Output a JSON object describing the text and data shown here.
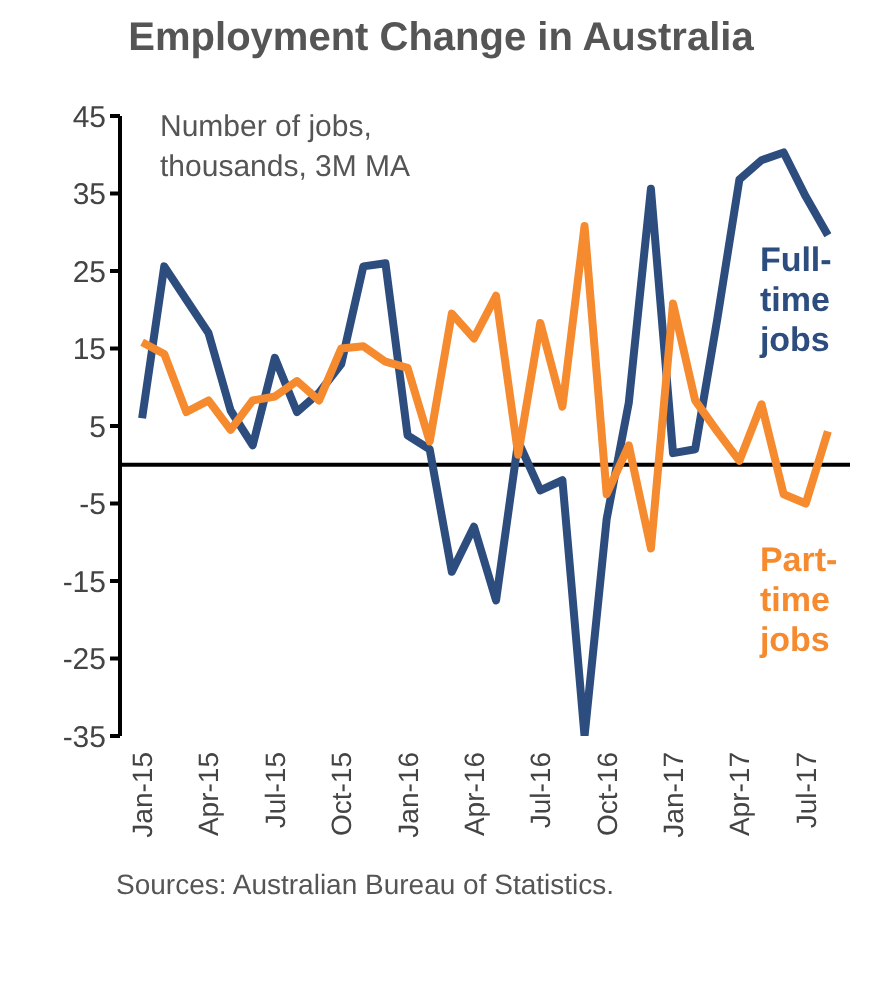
{
  "chart_data": {
    "type": "line",
    "title": "Employment Change in Australia",
    "x": [
      "2015-01",
      "2015-02",
      "2015-03",
      "2015-04",
      "2015-05",
      "2015-06",
      "2015-07",
      "2015-08",
      "2015-09",
      "2015-10",
      "2015-11",
      "2015-12",
      "2016-01",
      "2016-02",
      "2016-03",
      "2016-04",
      "2016-05",
      "2016-06",
      "2016-07",
      "2016-08",
      "2016-09",
      "2016-10",
      "2016-11",
      "2016-12",
      "2017-01",
      "2017-02",
      "2017-03",
      "2017-04",
      "2017-05",
      "2017-06",
      "2017-07",
      "2017-08"
    ],
    "series": [
      {
        "name": "Full-time jobs",
        "color": "#2c4d7e",
        "values": [
          6,
          25.6,
          21.3,
          17,
          7,
          2.5,
          13.8,
          6.8,
          9.3,
          13,
          25.6,
          26,
          3.8,
          2,
          -13.8,
          -8,
          -17.5,
          3,
          -3.3,
          -2,
          -35,
          -7,
          8,
          35.6,
          1.5,
          2,
          18.8,
          36.8,
          39.3,
          40.3,
          34.6,
          29.6
        ]
      },
      {
        "name": "Part-time jobs",
        "color": "#f58a2e",
        "values": [
          15.8,
          14.3,
          6.8,
          8.3,
          4.5,
          8.3,
          8.8,
          10.8,
          8.3,
          15,
          15.3,
          13.3,
          12.5,
          3,
          19.5,
          16.3,
          21.8,
          1.3,
          18.3,
          7.5,
          30.8,
          -3.8,
          2.5,
          -10.8,
          20.8,
          8.3,
          4.3,
          0.5,
          7.8,
          -3.8,
          -5,
          4.3
        ]
      }
    ],
    "xlim": [
      "2014-12",
      "2017-09"
    ],
    "xticks": [
      {
        "value": "2015-01",
        "label": "Jan-15"
      },
      {
        "value": "2015-04",
        "label": "Apr-15"
      },
      {
        "value": "2015-07",
        "label": "Jul-15"
      },
      {
        "value": "2015-10",
        "label": "Oct-15"
      },
      {
        "value": "2016-01",
        "label": "Jan-16"
      },
      {
        "value": "2016-04",
        "label": "Apr-16"
      },
      {
        "value": "2016-07",
        "label": "Jul-16"
      },
      {
        "value": "2016-10",
        "label": "Oct-16"
      },
      {
        "value": "2017-01",
        "label": "Jan-17"
      },
      {
        "value": "2017-04",
        "label": "Apr-17"
      },
      {
        "value": "2017-07",
        "label": "Jul-17"
      }
    ],
    "ylim": [
      -35,
      45
    ],
    "yticks": [
      45,
      35,
      25,
      15,
      5,
      -5,
      -15,
      -25,
      -35
    ],
    "ref_lines": [
      {
        "axis": "y",
        "value": 0,
        "color": "#000000"
      }
    ],
    "annotations": [
      "Number of jobs, thousands, 3M MA",
      "Sources: Australian Bureau of Statistics."
    ],
    "grid": false,
    "legend": false,
    "marker": "none",
    "line_style": "solid"
  }
}
